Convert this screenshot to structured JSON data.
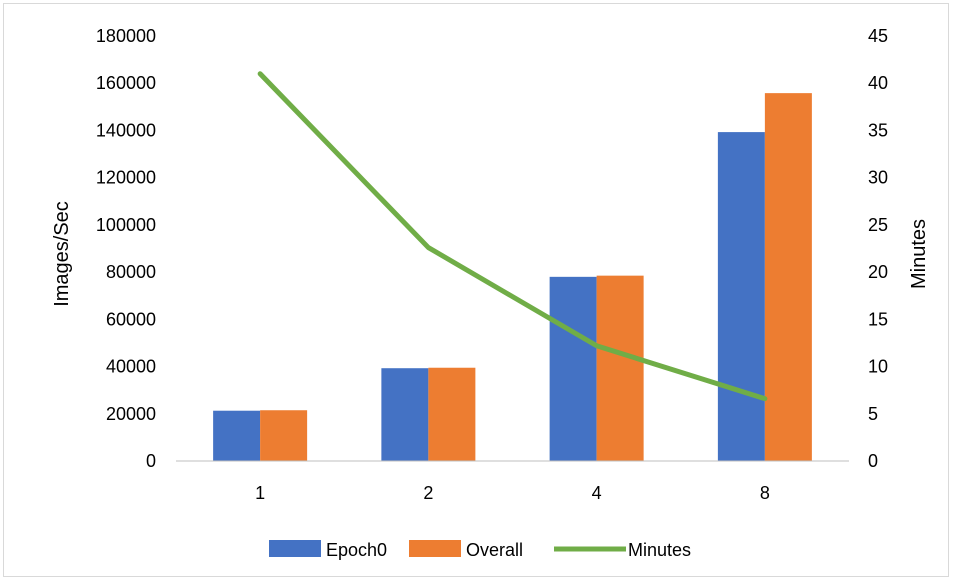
{
  "chart_data": {
    "type": "bar",
    "categories": [
      "1",
      "2",
      "4",
      "8"
    ],
    "series": [
      {
        "name": "Epoch0",
        "type": "bar",
        "axis": "left",
        "values": [
          21300,
          39300,
          78000,
          139300
        ]
      },
      {
        "name": "Overall",
        "type": "bar",
        "axis": "left",
        "values": [
          21500,
          39500,
          78500,
          155800
        ]
      },
      {
        "name": "Minutes",
        "type": "line",
        "axis": "right",
        "values": [
          41,
          22.6,
          12.2,
          6.6
        ]
      }
    ],
    "ylabel": "Images/Sec",
    "y2label": "Minutes",
    "ylim": [
      0,
      180000
    ],
    "y2lim": [
      0,
      45
    ],
    "yticks": [
      "0",
      "20000",
      "40000",
      "60000",
      "80000",
      "100000",
      "120000",
      "140000",
      "160000",
      "180000"
    ],
    "y2ticks": [
      "0",
      "5",
      "10",
      "15",
      "20",
      "25",
      "30",
      "35",
      "40",
      "45"
    ],
    "grid": false,
    "legend": "bottom",
    "colors": {
      "Epoch0": "#4472c4",
      "Overall": "#ed7d31",
      "Minutes": "#70ad47"
    }
  }
}
